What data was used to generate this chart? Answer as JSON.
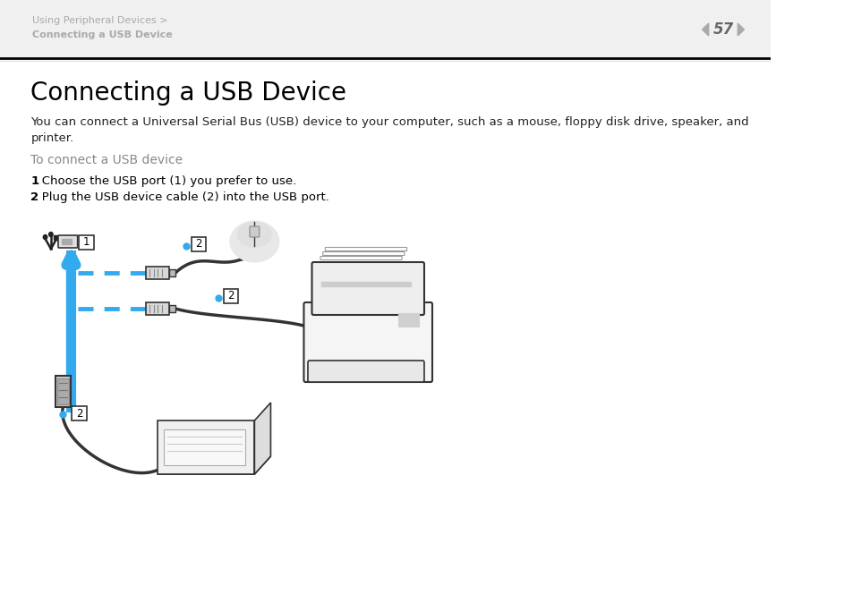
{
  "bg_color": "#ffffff",
  "header_bg_color": "#f0f0f0",
  "header_text_line1": "Using Peripheral Devices >",
  "header_text_line2": "Connecting a USB Device",
  "header_text_color": "#aaaaaa",
  "page_number": "57",
  "page_number_color": "#666666",
  "title": "Connecting a USB Device",
  "title_color": "#000000",
  "title_fontsize": 20,
  "body_text_line1": "You can connect a Universal Serial Bus (USB) device to your computer, such as a mouse, floppy disk drive, speaker, and",
  "body_text_line2": "printer.",
  "body_color": "#222222",
  "body_fontsize": 9.5,
  "subtitle": "To connect a USB device",
  "subtitle_color": "#888888",
  "subtitle_fontsize": 10,
  "step1_num": "1",
  "step1_text": "   Choose the USB port (1) you prefer to use.",
  "step2_num": "2",
  "step2_text": "   Plug the USB device cable (2) into the USB port.",
  "step_color": "#000000",
  "step_fontsize": 9.5,
  "separator_color": "#000000",
  "blue_color": "#33aaee",
  "dashed_blue": "#33aaee",
  "cable_color": "#333333",
  "device_edge_color": "#333333",
  "device_fill_color": "#f0f0f0"
}
